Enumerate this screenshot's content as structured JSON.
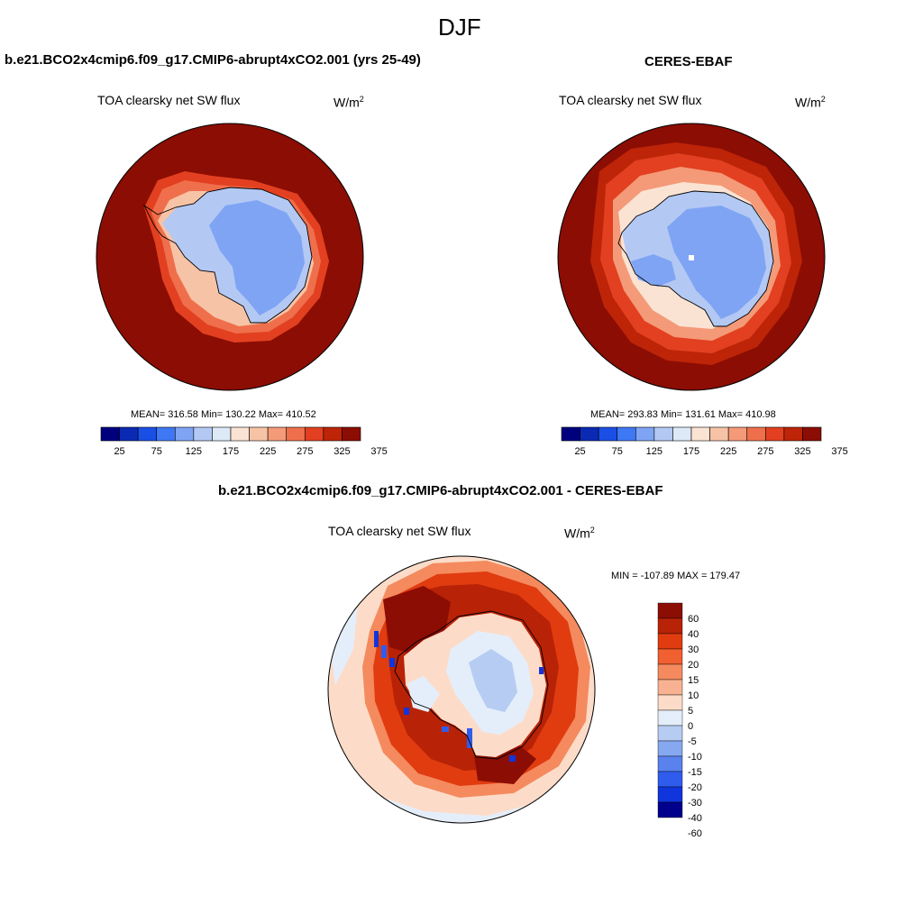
{
  "figure": {
    "season": "DJF"
  },
  "panels": {
    "model": {
      "title": "b.e21.BCO2x4cmip6.f09_g17.CMIP6-abrupt4xCO2.001 (yrs 25-49)",
      "variable": "TOA clearsky net SW flux",
      "units": "W/m",
      "units_sup": "2",
      "stats": "MEAN= 316.58  Min= 130.22  Max= 410.52",
      "stats_values": {
        "mean": 316.58,
        "min": 130.22,
        "max": 410.52
      }
    },
    "obs": {
      "title": "CERES-EBAF",
      "variable": "TOA clearsky net SW flux",
      "units": "W/m",
      "units_sup": "2",
      "stats": "MEAN= 293.83  Min= 131.61  Max= 410.98",
      "stats_values": {
        "mean": 293.83,
        "min": 131.61,
        "max": 410.98
      }
    },
    "diff": {
      "title": "b.e21.BCO2x4cmip6.f09_g17.CMIP6-abrupt4xCO2.001 - CERES-EBAF",
      "variable": "TOA clearsky net SW flux",
      "units": "W/m",
      "units_sup": "2",
      "stats": "MIN = -107.89 MAX = 179.47",
      "stats_values": {
        "min": -107.89,
        "max": 179.47
      }
    }
  },
  "colorbars": {
    "absolute": {
      "orientation": "horizontal",
      "colors": [
        "#00007f",
        "#0a2ab4",
        "#1a4fe6",
        "#3f78f4",
        "#7fa4f4",
        "#b3c9f4",
        "#dde9f7",
        "#fbe3d3",
        "#f7c3a6",
        "#f49a78",
        "#ef6f4c",
        "#e24020",
        "#bd2408",
        "#8c0d03"
      ],
      "tick_labels": [
        "25",
        "75",
        "125",
        "175",
        "225",
        "275",
        "325",
        "375"
      ]
    },
    "difference": {
      "orientation": "vertical",
      "colors_top_to_bottom": [
        "#8c0d03",
        "#b82206",
        "#e03c10",
        "#f06030",
        "#f48a5e",
        "#f8b292",
        "#fcdcc8",
        "#e4eefa",
        "#b6ccf2",
        "#86a8f0",
        "#5a82ee",
        "#2f5ced",
        "#1035dc",
        "#00008c"
      ],
      "tick_labels_top_to_bottom": [
        "60",
        "40",
        "30",
        "20",
        "15",
        "10",
        "5",
        "0",
        "-5",
        "-10",
        "-15",
        "-20",
        "-30",
        "-40",
        "-60"
      ]
    }
  },
  "map": {
    "projection": "south-polar stereographic",
    "land_outline_color": "#000000"
  }
}
